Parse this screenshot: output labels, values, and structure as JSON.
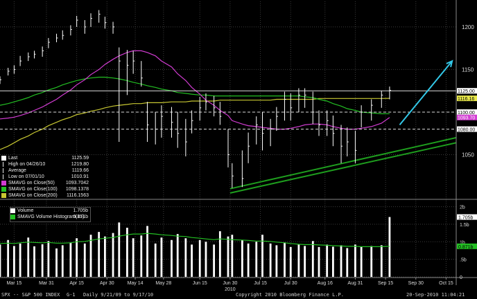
{
  "footer": {
    "ticker": "SPX -- S&P 500 INDEX",
    "chart_id": "G-1",
    "period": "Daily  9/21/09 to 9/17/10",
    "copyright": "Copyright 2010 Bloomberg Finance L.P.",
    "timestamp": "20-Sep-2010 11:04:21"
  },
  "colors": {
    "background": "#000000",
    "price_bars": "#ffffff",
    "sma50": "#d23cd2",
    "sma100": "#23c023",
    "sma200": "#c8c832",
    "channel": "#1e9e1e",
    "arrow": "#33c8e8",
    "grid": "#3c3c3c"
  },
  "price_legend": [
    {
      "label": "Last",
      "value": "1125.59",
      "swatch": "#ffffff",
      "icon": "last-square-icon"
    },
    {
      "label": "High on 04/26/10",
      "value": "1219.80",
      "icon": "high-marker-icon"
    },
    {
      "label": "Average",
      "value": "1119.66",
      "icon": "average-marker-icon"
    },
    {
      "label": "Low on 07/01/10",
      "value": "1010.91",
      "icon": "low-marker-icon"
    },
    {
      "label": "SMAVG on Close(50)",
      "value": "1093.7042",
      "swatch": "#d23cd2"
    },
    {
      "label": "SMAVG on Close(100)",
      "value": "1098.1378",
      "swatch": "#23c023"
    },
    {
      "label": "SMAVG on Close(200)",
      "value": "1116.1563",
      "swatch": "#c8c832"
    }
  ],
  "volume_legend": [
    {
      "label": "Volume",
      "value": "1.705b",
      "swatch": "#ffffff"
    },
    {
      "label": "SMAVG Volume Histogram(15)",
      "value": "0.871b",
      "swatch": "#23c023"
    }
  ],
  "chart_data": [
    {
      "type": "ohlc",
      "xlabel": "2010",
      "y_ticks": [
        "1200",
        "1150",
        "1100",
        "1050"
      ],
      "ylim": [
        1000,
        1230
      ],
      "x_ticks": [
        "Mar 15",
        "Mar 31",
        "Apr 15",
        "Apr 30",
        "May 14",
        "May 28",
        "Jun 15",
        "Jun 30",
        "Jul 15",
        "Jul 30",
        "Aug 16",
        "Aug 31",
        "Sep 15",
        "Sep 30",
        "Oct 15"
      ],
      "x_range": [
        "2010-03-08",
        "2010-10-20"
      ],
      "dates": [
        "2010-03-08",
        "2010-03-12",
        "2010-03-15",
        "2010-03-18",
        "2010-03-22",
        "2010-03-25",
        "2010-03-29",
        "2010-04-01",
        "2010-04-05",
        "2010-04-08",
        "2010-04-12",
        "2010-04-15",
        "2010-04-19",
        "2010-04-22",
        "2010-04-26",
        "2010-04-29",
        "2010-05-03",
        "2010-05-06",
        "2010-05-10",
        "2010-05-13",
        "2010-05-17",
        "2010-05-20",
        "2010-05-24",
        "2010-05-27",
        "2010-06-01",
        "2010-06-04",
        "2010-06-08",
        "2010-06-11",
        "2010-06-15",
        "2010-06-18",
        "2010-06-22",
        "2010-06-25",
        "2010-06-29",
        "2010-07-01",
        "2010-07-06",
        "2010-07-09",
        "2010-07-13",
        "2010-07-16",
        "2010-07-20",
        "2010-07-23",
        "2010-07-27",
        "2010-07-30",
        "2010-08-03",
        "2010-08-06",
        "2010-08-10",
        "2010-08-13",
        "2010-08-17",
        "2010-08-20",
        "2010-08-24",
        "2010-08-27",
        "2010-08-31",
        "2010-09-03",
        "2010-09-08",
        "2010-09-13",
        "2010-09-17"
      ],
      "close": [
        1138,
        1148,
        1150,
        1160,
        1165,
        1168,
        1172,
        1182,
        1187,
        1190,
        1197,
        1208,
        1200,
        1210,
        1215,
        1205,
        1200,
        1160,
        1155,
        1160,
        1140,
        1085,
        1080,
        1095,
        1088,
        1075,
        1065,
        1090,
        1105,
        1112,
        1105,
        1095,
        1050,
        1025,
        1022,
        1060,
        1085,
        1075,
        1080,
        1095,
        1115,
        1105,
        1120,
        1120,
        1100,
        1085,
        1090,
        1075,
        1060,
        1065,
        1055,
        1100,
        1108,
        1120,
        1125.59
      ],
      "high": [
        1142,
        1152,
        1155,
        1166,
        1170,
        1172,
        1177,
        1187,
        1192,
        1196,
        1202,
        1213,
        1208,
        1216,
        1219.8,
        1212,
        1206,
        1176,
        1173,
        1172,
        1160,
        1112,
        1100,
        1108,
        1106,
        1100,
        1092,
        1102,
        1118,
        1122,
        1119,
        1112,
        1080,
        1040,
        1055,
        1076,
        1095,
        1100,
        1092,
        1106,
        1124,
        1122,
        1128,
        1128,
        1124,
        1102,
        1102,
        1096,
        1085,
        1082,
        1078,
        1108,
        1115,
        1125,
        1130
      ],
      "low": [
        1133,
        1143,
        1145,
        1154,
        1160,
        1163,
        1165,
        1175,
        1182,
        1185,
        1190,
        1200,
        1192,
        1200,
        1205,
        1198,
        1192,
        1065,
        1120,
        1145,
        1130,
        1065,
        1062,
        1070,
        1070,
        1058,
        1048,
        1075,
        1090,
        1102,
        1095,
        1085,
        1035,
        1010.91,
        1012,
        1040,
        1062,
        1055,
        1060,
        1078,
        1090,
        1090,
        1100,
        1105,
        1086,
        1072,
        1072,
        1060,
        1040,
        1048,
        1040,
        1082,
        1090,
        1105,
        1115
      ],
      "sma50": [
        1092,
        1093,
        1094,
        1096,
        1099,
        1102,
        1106,
        1110,
        1115,
        1120,
        1126,
        1132,
        1138,
        1144,
        1150,
        1156,
        1162,
        1166,
        1170,
        1172,
        1172,
        1170,
        1166,
        1160,
        1153,
        1145,
        1137,
        1129,
        1121,
        1114,
        1108,
        1102,
        1096,
        1090,
        1086,
        1084,
        1083,
        1082,
        1081,
        1080,
        1080,
        1081,
        1083,
        1085,
        1086,
        1086,
        1085,
        1083,
        1081,
        1080,
        1080,
        1081,
        1083,
        1087,
        1093.7
      ],
      "sma100": [
        1108,
        1110,
        1112,
        1114,
        1117,
        1120,
        1123,
        1126,
        1129,
        1132,
        1135,
        1137,
        1139,
        1140,
        1141,
        1141,
        1140,
        1139,
        1137,
        1135,
        1133,
        1131,
        1129,
        1127,
        1125,
        1123,
        1122,
        1121,
        1120,
        1120,
        1119,
        1119,
        1119,
        1119,
        1119,
        1119,
        1119,
        1119,
        1119,
        1119,
        1119,
        1119,
        1119,
        1118,
        1117,
        1115,
        1113,
        1110,
        1107,
        1104,
        1102,
        1100,
        1099,
        1098,
        1098.1
      ],
      "sma200": [
        1056,
        1060,
        1064,
        1068,
        1072,
        1076,
        1080,
        1084,
        1088,
        1091,
        1094,
        1097,
        1099,
        1101,
        1103,
        1105,
        1107,
        1108,
        1109,
        1110,
        1110,
        1111,
        1111,
        1111,
        1112,
        1112,
        1112,
        1113,
        1113,
        1113,
        1113,
        1114,
        1114,
        1114,
        1114,
        1114,
        1114,
        1114,
        1114,
        1115,
        1115,
        1115,
        1115,
        1115,
        1115,
        1116,
        1116,
        1116,
        1116,
        1116,
        1116,
        1116,
        1116,
        1116,
        1116.16
      ],
      "reference_lines": [
        {
          "value": 1125,
          "label": "1125.00",
          "style": "solid"
        },
        {
          "value": 1116.16,
          "label": "1116.16",
          "style": "solid"
        },
        {
          "value": 1100,
          "label": "1100.00",
          "style": "dashed"
        },
        {
          "value": 1093.7,
          "label": "1093.70",
          "style": "solid"
        },
        {
          "value": 1080,
          "label": "1080.00",
          "style": "dashed"
        }
      ],
      "price_labels": [
        {
          "text": "1125.00",
          "bg": "#ffffff",
          "fg": "#000000"
        },
        {
          "text": "1116.16",
          "bg": "#e8e84a",
          "fg": "#000000"
        },
        {
          "text": "1100.00",
          "bg": "#ffffff",
          "fg": "#000000"
        },
        {
          "text": "1093.70",
          "bg": "#d23cd2",
          "fg": "#ffffff"
        },
        {
          "text": "1080.00",
          "bg": "#ffffff",
          "fg": "#000000"
        }
      ],
      "channel": [
        [
          "2010-06-30",
          1010,
          "2010-10-20",
          1070
        ],
        [
          "2010-06-30",
          1005,
          "2010-10-20",
          1064
        ]
      ],
      "arrow": [
        "2010-09-22",
        1085,
        "2010-10-18",
        1160
      ]
    },
    {
      "type": "bar",
      "series_name": "Volume",
      "y_ticks": [
        "2b",
        "1.5b",
        "1b",
        ".5b",
        "0"
      ],
      "ylim": [
        0,
        2.15
      ],
      "volume": [
        0.92,
        1.05,
        0.88,
        0.95,
        1.12,
        0.87,
        0.93,
        1.02,
        0.81,
        0.9,
        0.98,
        1.1,
        0.95,
        1.2,
        1.28,
        1.15,
        1.25,
        1.55,
        1.4,
        1.1,
        1.18,
        1.45,
        0.95,
        1.12,
        1.05,
        1.22,
        1.1,
        0.92,
        1.05,
        1.0,
        0.92,
        1.3,
        1.15,
        1.2,
        1.05,
        0.95,
        1.0,
        1.2,
        0.95,
        0.9,
        0.98,
        0.85,
        0.92,
        0.88,
        1.02,
        0.85,
        0.92,
        0.86,
        0.9,
        0.82,
        0.92,
        0.85,
        0.88,
        0.9,
        1.705
      ],
      "volume_avg": [
        0.95,
        0.96,
        0.95,
        0.97,
        0.99,
        0.98,
        0.97,
        0.98,
        0.96,
        0.96,
        0.97,
        1.0,
        1.01,
        1.04,
        1.08,
        1.1,
        1.12,
        1.16,
        1.2,
        1.22,
        1.22,
        1.24,
        1.22,
        1.2,
        1.18,
        1.16,
        1.15,
        1.12,
        1.1,
        1.08,
        1.06,
        1.08,
        1.07,
        1.06,
        1.05,
        1.04,
        1.02,
        1.02,
        1.01,
        0.99,
        0.97,
        0.95,
        0.93,
        0.92,
        0.92,
        0.91,
        0.9,
        0.89,
        0.88,
        0.87,
        0.87,
        0.86,
        0.86,
        0.86,
        0.871
      ],
      "value_labels": [
        {
          "text": "1.705b",
          "bg": "#ffffff",
          "fg": "#000000",
          "value": 1.705
        },
        {
          "text": "0.871b",
          "bg": "#23c023",
          "fg": "#000000",
          "value": 0.871
        }
      ]
    }
  ]
}
